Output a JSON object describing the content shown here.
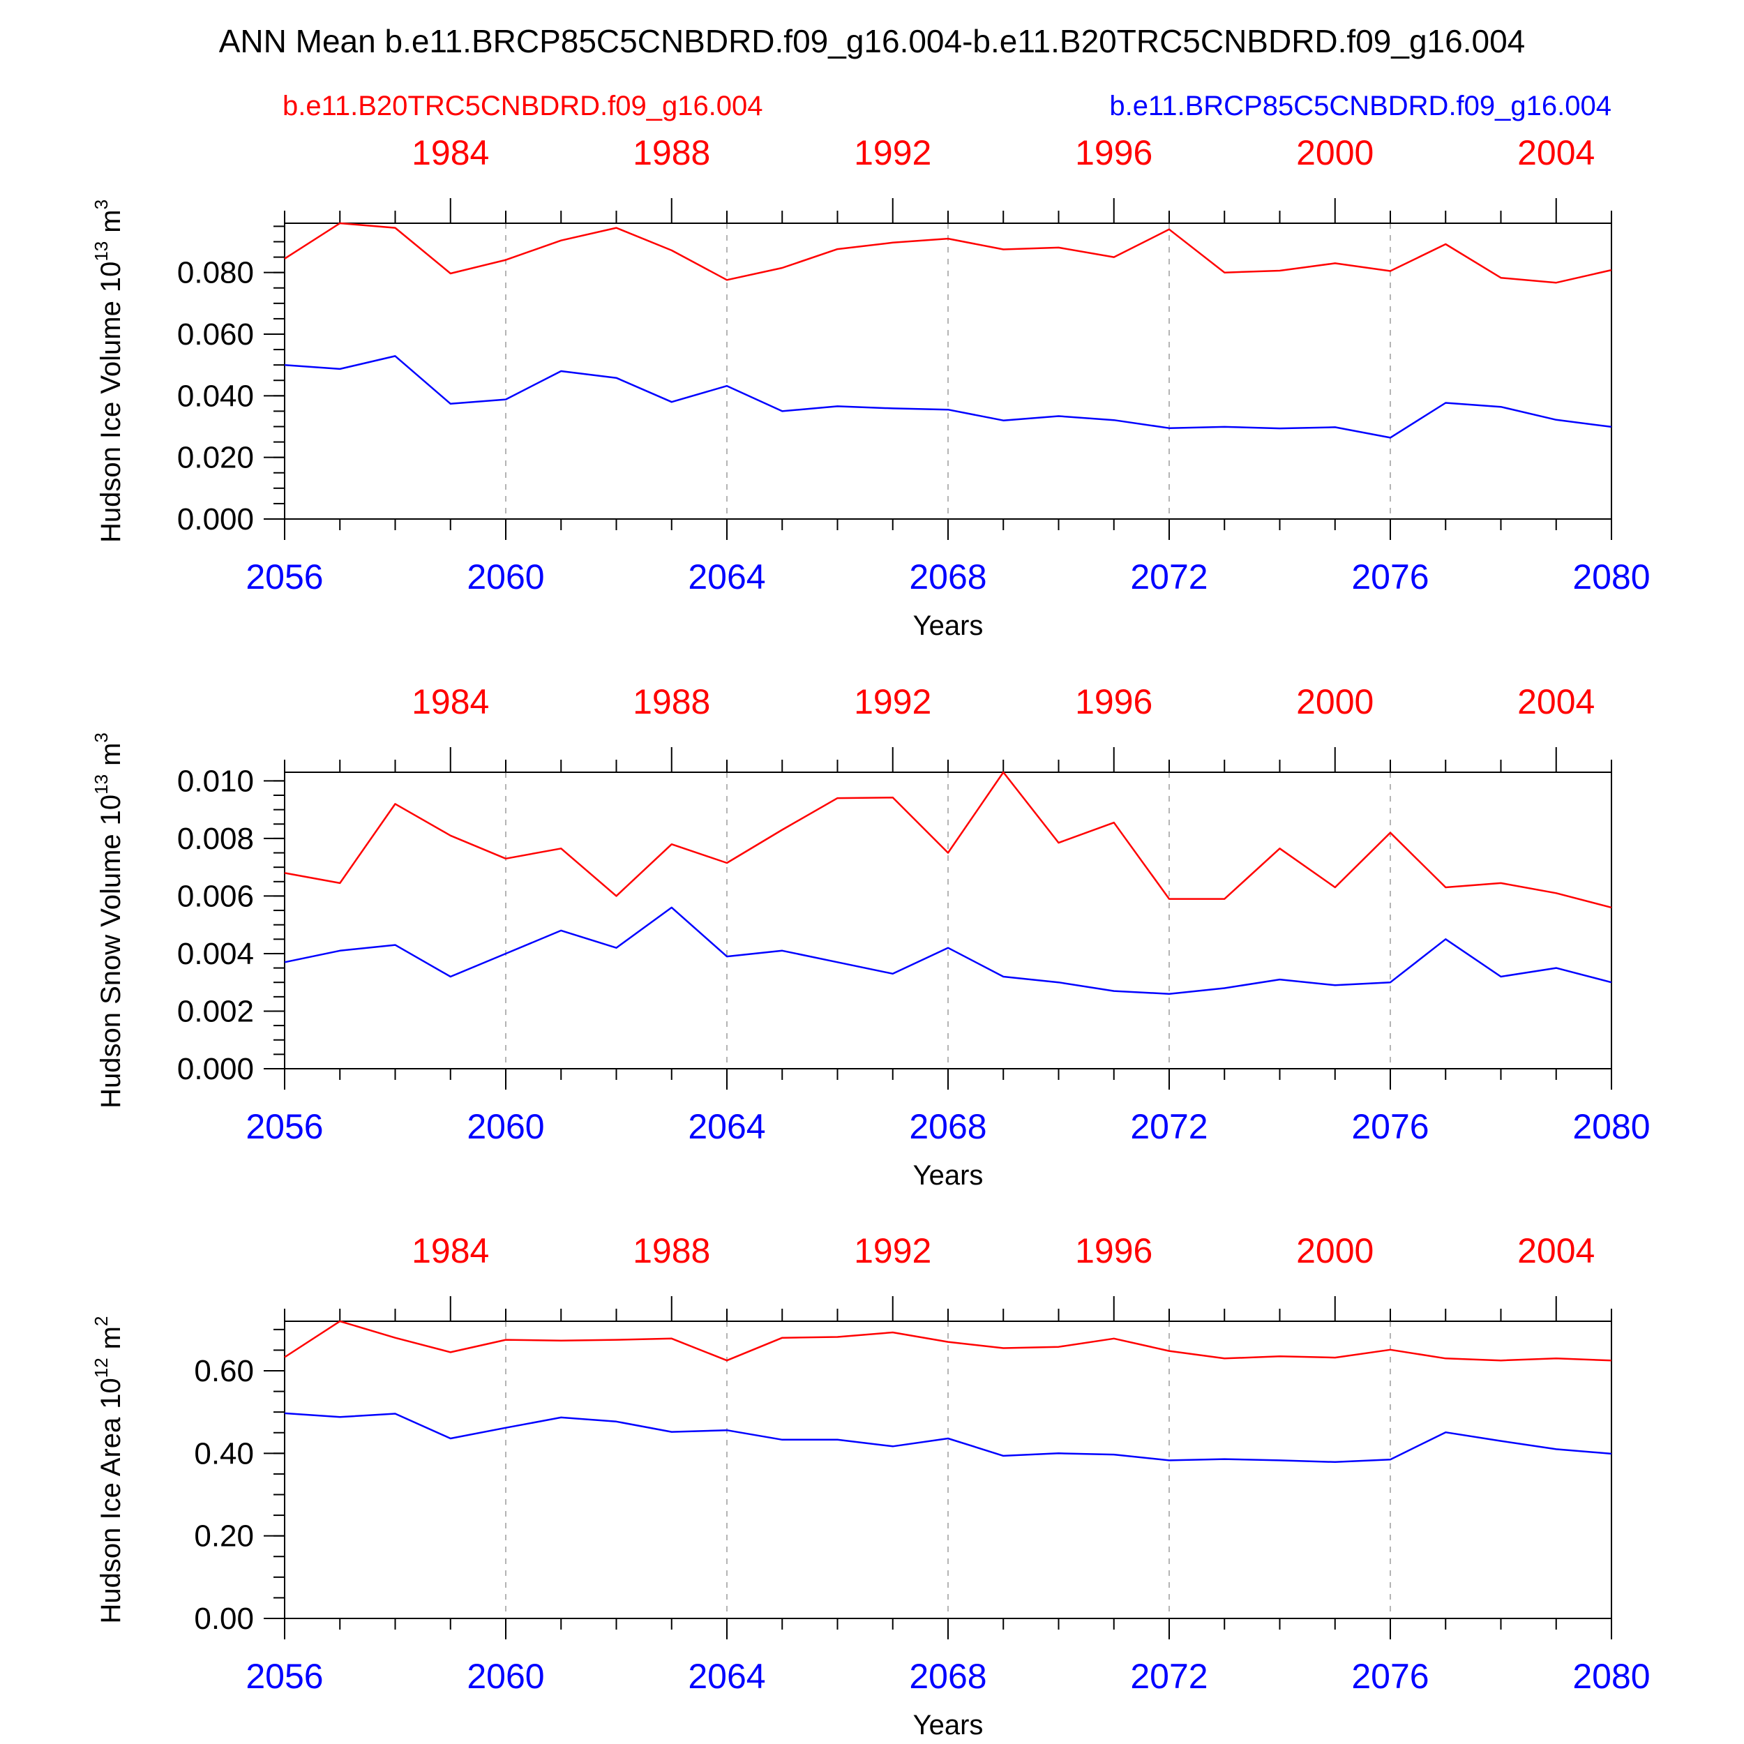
{
  "header": {
    "title": "ANN Mean b.e11.BRCP85C5CNBDRD.f09_g16.004-b.e11.B20TRC5CNBDRD.f09_g16.004",
    "case_red": "b.e11.B20TRC5CNBDRD.f09_g16.004",
    "case_blue": "b.e11.BRCP85C5CNBDRD.f09_g16.004"
  },
  "colors": {
    "red": "#ff0000",
    "blue": "#0000ff"
  },
  "chart_data": [
    {
      "type": "line",
      "ylabel": "Hudson Ice Volume",
      "ylabel_unit_base": "10",
      "ylabel_unit_exp": "13",
      "ylabel_unit_tail": "m",
      "ylabel_unit_tail_exp": "3",
      "xlabel": "Years",
      "xlim": [
        2056,
        2080
      ],
      "ylim": [
        0,
        0.096
      ],
      "x_ticks": [
        "2056",
        "2060",
        "2064",
        "2068",
        "2072",
        "2076",
        "2080"
      ],
      "x_tick_values": [
        2056,
        2060,
        2064,
        2068,
        2072,
        2076,
        2080
      ],
      "top_ticks": [
        "1984",
        "1988",
        "1992",
        "1996",
        "2000",
        "2004"
      ],
      "top_tick_values": [
        1984,
        1988,
        1992,
        1996,
        2000,
        2004
      ],
      "top_offset_years": 75,
      "y_ticks": [
        "0.000",
        "0.020",
        "0.040",
        "0.060",
        "0.080"
      ],
      "y_tick_values": [
        0,
        0.02,
        0.04,
        0.06,
        0.08
      ],
      "y_minor_step": 0.005,
      "x": [
        2056,
        2057,
        2058,
        2059,
        2060,
        2061,
        2062,
        2063,
        2064,
        2065,
        2066,
        2067,
        2068,
        2069,
        2070,
        2071,
        2072,
        2073,
        2074,
        2075,
        2076,
        2077,
        2078,
        2079,
        2080
      ],
      "series": [
        {
          "color": "red",
          "values": [
            0.0845,
            0.096,
            0.0945,
            0.0797,
            0.0841,
            0.0904,
            0.0945,
            0.0872,
            0.0776,
            0.0815,
            0.0876,
            0.0897,
            0.091,
            0.0875,
            0.0881,
            0.085,
            0.094,
            0.08,
            0.0806,
            0.083,
            0.0805,
            0.0892,
            0.0783,
            0.0767,
            0.0808
          ]
        },
        {
          "color": "blue",
          "values": [
            0.05,
            0.0487,
            0.0529,
            0.0374,
            0.0388,
            0.048,
            0.0458,
            0.038,
            0.0432,
            0.035,
            0.0366,
            0.0359,
            0.0355,
            0.032,
            0.0334,
            0.0321,
            0.0295,
            0.0299,
            0.0294,
            0.0298,
            0.0264,
            0.0377,
            0.0364,
            0.0322,
            0.0299
          ]
        }
      ]
    },
    {
      "type": "line",
      "ylabel": "Hudson Snow Volume",
      "ylabel_unit_base": "10",
      "ylabel_unit_exp": "13",
      "ylabel_unit_tail": "m",
      "ylabel_unit_tail_exp": "3",
      "xlabel": "Years",
      "xlim": [
        2056,
        2080
      ],
      "ylim": [
        0,
        0.0103
      ],
      "x_ticks": [
        "2056",
        "2060",
        "2064",
        "2068",
        "2072",
        "2076",
        "2080"
      ],
      "x_tick_values": [
        2056,
        2060,
        2064,
        2068,
        2072,
        2076,
        2080
      ],
      "top_ticks": [
        "1984",
        "1988",
        "1992",
        "1996",
        "2000",
        "2004"
      ],
      "top_tick_values": [
        1984,
        1988,
        1992,
        1996,
        2000,
        2004
      ],
      "top_offset_years": 75,
      "y_ticks": [
        "0.000",
        "0.002",
        "0.004",
        "0.006",
        "0.008",
        "0.010"
      ],
      "y_tick_values": [
        0,
        0.002,
        0.004,
        0.006,
        0.008,
        0.01
      ],
      "y_minor_step": 0.0005,
      "x": [
        2056,
        2057,
        2058,
        2059,
        2060,
        2061,
        2062,
        2063,
        2064,
        2065,
        2066,
        2067,
        2068,
        2069,
        2070,
        2071,
        2072,
        2073,
        2074,
        2075,
        2076,
        2077,
        2078,
        2079,
        2080
      ],
      "series": [
        {
          "color": "red",
          "values": [
            0.0068,
            0.00645,
            0.0092,
            0.0081,
            0.0073,
            0.00765,
            0.006,
            0.0078,
            0.00715,
            0.0083,
            0.0094,
            0.00942,
            0.0075,
            0.0103,
            0.00785,
            0.00855,
            0.0059,
            0.0059,
            0.00765,
            0.0063,
            0.0082,
            0.0063,
            0.00645,
            0.0061,
            0.0056
          ]
        },
        {
          "color": "blue",
          "values": [
            0.0037,
            0.0041,
            0.0043,
            0.0032,
            0.004,
            0.0048,
            0.0042,
            0.0056,
            0.0039,
            0.0041,
            0.0037,
            0.0033,
            0.0042,
            0.0032,
            0.003,
            0.0027,
            0.0026,
            0.0028,
            0.0031,
            0.0029,
            0.003,
            0.0045,
            0.0032,
            0.0035,
            0.003
          ]
        }
      ]
    },
    {
      "type": "line",
      "ylabel": "Hudson Ice Area",
      "ylabel_unit_base": "10",
      "ylabel_unit_exp": "12",
      "ylabel_unit_tail": "m",
      "ylabel_unit_tail_exp": "2",
      "xlabel": "Years",
      "xlim": [
        2056,
        2080
      ],
      "ylim": [
        0,
        0.72
      ],
      "x_ticks": [
        "2056",
        "2060",
        "2064",
        "2068",
        "2072",
        "2076",
        "2080"
      ],
      "x_tick_values": [
        2056,
        2060,
        2064,
        2068,
        2072,
        2076,
        2080
      ],
      "top_ticks": [
        "1984",
        "1988",
        "1992",
        "1996",
        "2000",
        "2004"
      ],
      "top_tick_values": [
        1984,
        1988,
        1992,
        1996,
        2000,
        2004
      ],
      "top_offset_years": 75,
      "y_ticks": [
        "0.00",
        "0.20",
        "0.40",
        "0.60"
      ],
      "y_tick_values": [
        0,
        0.2,
        0.4,
        0.6
      ],
      "y_minor_step": 0.05,
      "x": [
        2056,
        2057,
        2058,
        2059,
        2060,
        2061,
        2062,
        2063,
        2064,
        2065,
        2066,
        2067,
        2068,
        2069,
        2070,
        2071,
        2072,
        2073,
        2074,
        2075,
        2076,
        2077,
        2078,
        2079,
        2080
      ],
      "series": [
        {
          "color": "red",
          "values": [
            0.633,
            0.72,
            0.68,
            0.645,
            0.675,
            0.673,
            0.675,
            0.678,
            0.625,
            0.68,
            0.682,
            0.693,
            0.67,
            0.655,
            0.658,
            0.678,
            0.648,
            0.63,
            0.635,
            0.632,
            0.651,
            0.63,
            0.625,
            0.63,
            0.625
          ]
        },
        {
          "color": "blue",
          "values": [
            0.497,
            0.488,
            0.496,
            0.436,
            0.462,
            0.487,
            0.477,
            0.452,
            0.456,
            0.433,
            0.433,
            0.417,
            0.436,
            0.394,
            0.4,
            0.397,
            0.383,
            0.386,
            0.383,
            0.379,
            0.385,
            0.451,
            0.43,
            0.41,
            0.399
          ]
        }
      ]
    }
  ]
}
